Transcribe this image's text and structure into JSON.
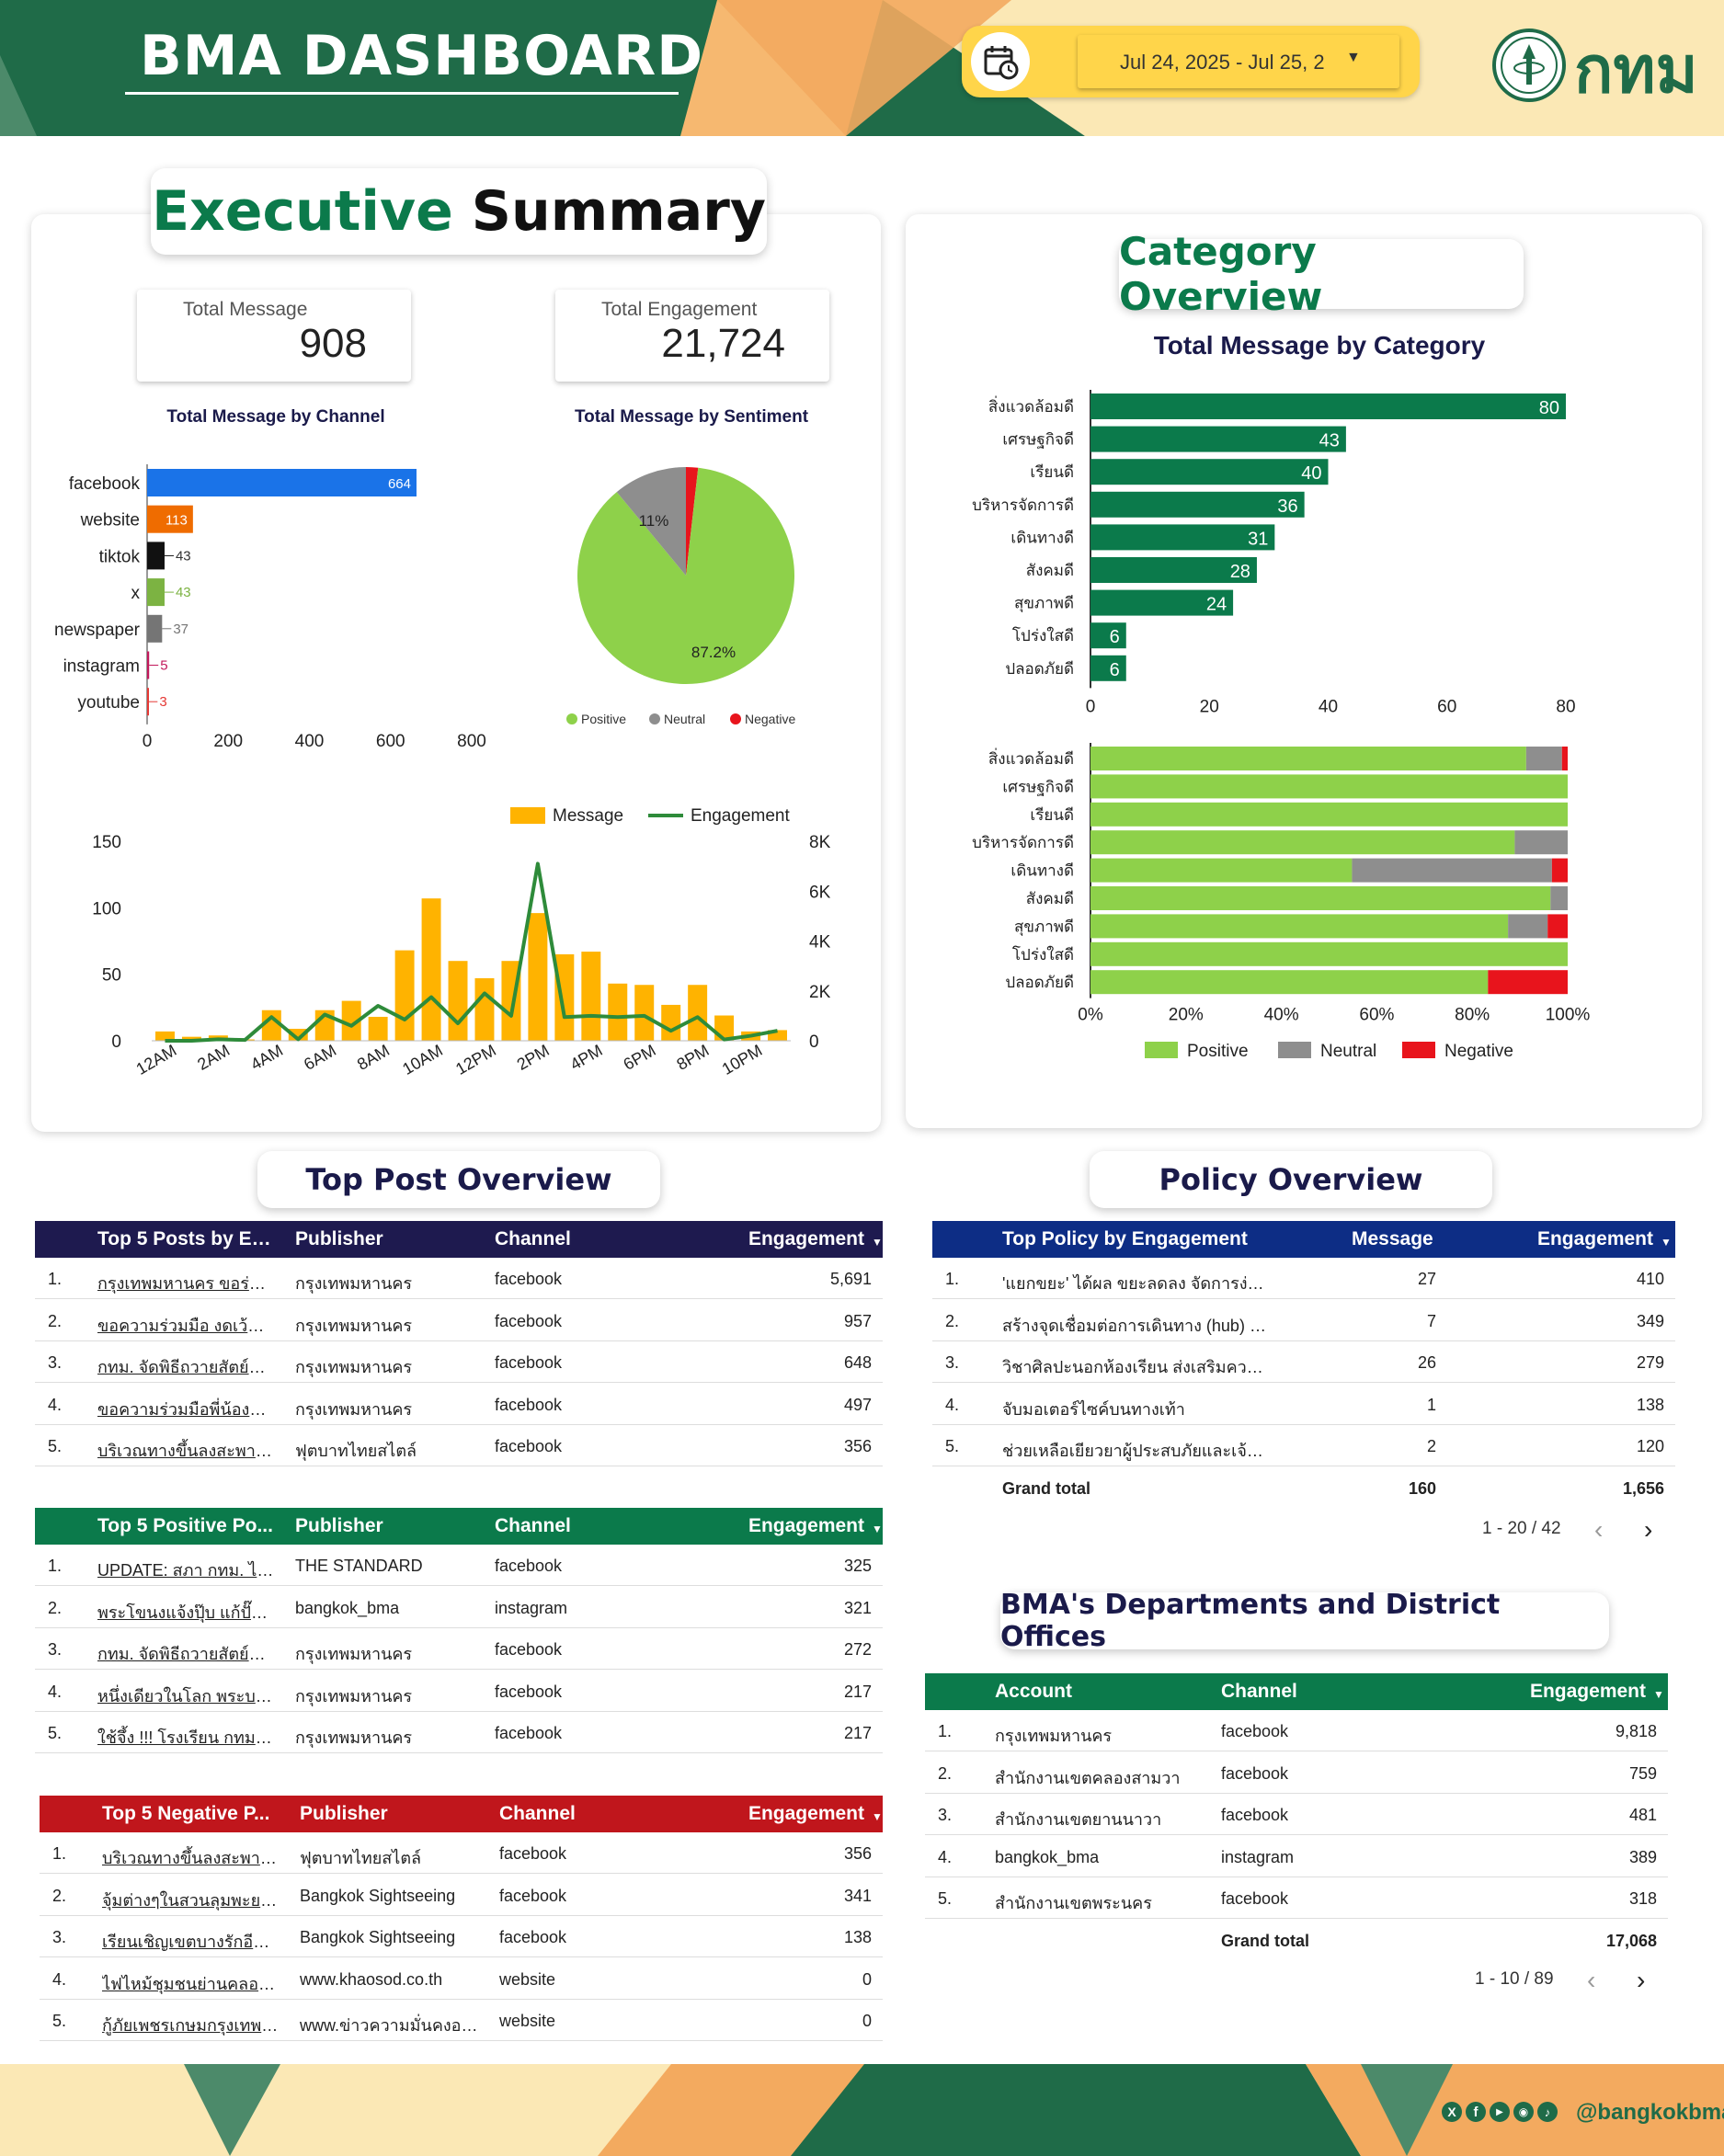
{
  "header": {
    "title": "BMA DASHBOARD",
    "date_range": "Jul 24, 2025 - Jul 25, 2",
    "logo_text": "กทม",
    "bg_dark": "#1f6b48",
    "bg_light": "#fbe3a8",
    "accent_yellow": "#ffd54a"
  },
  "exec": {
    "title_a": "Executive",
    "title_b": "Summary",
    "kpi_message_label": "Total Message",
    "kpi_message_value": "908",
    "kpi_engagement_label": "Total Engagement",
    "kpi_engagement_value": "21,724",
    "channel_title": "Total Message by Channel",
    "sentiment_title": "Total Message by Sentiment"
  },
  "category": {
    "title": "Category Overview",
    "chart_title": "Total Message by Category"
  },
  "top_post": {
    "title": "Top Post Overview"
  },
  "policy": {
    "title": "Policy Overview"
  },
  "dept": {
    "title": "BMA's Departments and District Offices"
  },
  "chart_data": [
    {
      "type": "bar",
      "orientation": "horizontal",
      "title": "Total Message by Channel",
      "categories": [
        "facebook",
        "website",
        "tiktok",
        "x",
        "newspaper",
        "instagram",
        "youtube"
      ],
      "values": [
        664,
        113,
        43,
        43,
        37,
        5,
        3
      ],
      "colors": [
        "#1a73e8",
        "#ef6c00",
        "#111111",
        "#7cb342",
        "#757575",
        "#c2185b",
        "#e53935"
      ],
      "xlim": [
        0,
        800
      ],
      "xticks": [
        0,
        200,
        400,
        600,
        800
      ]
    },
    {
      "type": "pie",
      "title": "Total Message by Sentiment",
      "labels": [
        "Positive",
        "Neutral",
        "Negative"
      ],
      "values": [
        87.2,
        11,
        1.8
      ],
      "slice_labels": [
        "87.2%",
        "11%",
        ""
      ],
      "colors": [
        "#8ed14a",
        "#8e8e8e",
        "#e8141c"
      ]
    },
    {
      "type": "bar",
      "orientation": "vertical",
      "series_type": "combo",
      "x": [
        "12AM",
        "1AM",
        "2AM",
        "3AM",
        "4AM",
        "5AM",
        "6AM",
        "7AM",
        "8AM",
        "9AM",
        "10AM",
        "11AM",
        "12PM",
        "1PM",
        "2PM",
        "3PM",
        "4PM",
        "5PM",
        "6PM",
        "7PM",
        "8PM",
        "9PM",
        "10PM",
        "11PM"
      ],
      "xtick_labels": [
        "12AM",
        "2AM",
        "4AM",
        "6AM",
        "8AM",
        "10AM",
        "12PM",
        "2PM",
        "4PM",
        "6PM",
        "8PM",
        "10PM"
      ],
      "series": [
        {
          "name": "Message",
          "kind": "bar",
          "axis": "left",
          "color": "#ffb300",
          "values": [
            7,
            3,
            4,
            1,
            23,
            9,
            23,
            30,
            18,
            68,
            107,
            60,
            47,
            60,
            96,
            65,
            67,
            43,
            42,
            27,
            42,
            19,
            7,
            8
          ]
        },
        {
          "name": "Engagement",
          "kind": "line",
          "axis": "right",
          "color": "#2e8b3a",
          "values": [
            0,
            0,
            60,
            30,
            950,
            60,
            1050,
            600,
            1400,
            850,
            1750,
            700,
            1900,
            1000,
            7100,
            950,
            1000,
            950,
            1000,
            400,
            950,
            50,
            200,
            400
          ]
        }
      ],
      "ylim_left": [
        0,
        150
      ],
      "yticks_left": [
        0,
        50,
        100,
        150
      ],
      "ylim_right": [
        0,
        8000
      ],
      "yticks_right": [
        "0",
        "2K",
        "4K",
        "6K",
        "8K"
      ]
    },
    {
      "type": "bar",
      "orientation": "horizontal",
      "title": "Total Message by Category",
      "categories": [
        "สิ่งแวดล้อมดี",
        "เศรษฐกิจดี",
        "เรียนดี",
        "บริหารจัดการดี",
        "เดินทางดี",
        "สังคมดี",
        "สุขภาพดี",
        "โปร่งใสดี",
        "ปลอดภัยดี"
      ],
      "values": [
        80,
        43,
        40,
        36,
        31,
        28,
        24,
        6,
        6
      ],
      "color": "#0b7a4b",
      "xlim": [
        0,
        80
      ],
      "xticks": [
        0,
        20,
        40,
        60,
        80
      ]
    },
    {
      "type": "bar",
      "orientation": "horizontal",
      "stacked": "percent",
      "categories": [
        "สิ่งแวดล้อมดี",
        "เศรษฐกิจดี",
        "เรียนดี",
        "บริหารจัดการดี",
        "เดินทางดี",
        "สังคมดี",
        "สุขภาพดี",
        "โปร่งใสดี",
        "ปลอดภัยดี"
      ],
      "series": [
        {
          "name": "Positive",
          "color": "#8ed14a",
          "values": [
            91.3,
            100,
            100,
            88.9,
            54.8,
            96.4,
            87.5,
            100,
            83.3
          ]
        },
        {
          "name": "Neutral",
          "color": "#8e8e8e",
          "values": [
            7.5,
            0,
            0,
            11.1,
            41.9,
            3.6,
            8.3,
            0,
            0
          ]
        },
        {
          "name": "Negative",
          "color": "#e8141c",
          "values": [
            1.2,
            0,
            0,
            0,
            3.3,
            0,
            4.2,
            0,
            16.7
          ]
        }
      ],
      "xticks": [
        "0%",
        "20%",
        "40%",
        "60%",
        "80%",
        "100%"
      ]
    }
  ],
  "top_engagement": {
    "headers": [
      "Top 5 Posts by En...",
      "Publisher",
      "Channel",
      "Engagement"
    ],
    "color": "#1e1a4f",
    "rows": [
      {
        "n": "1.",
        "post": "กรุงเทพมหานคร ขอร่วมส่ง...",
        "publisher": "กรุงเทพมหานคร",
        "channel": "facebook",
        "eng": "5,691"
      },
      {
        "n": "2.",
        "post": "ขอความร่วมมือ งดเว้นการ...",
        "publisher": "กรุงเทพมหานคร",
        "channel": "facebook",
        "eng": "957"
      },
      {
        "n": "3.",
        "post": "กทม. จัดพิธีถวายสัตย์ปฏิ...",
        "publisher": "กรุงเทพมหานคร",
        "channel": "facebook",
        "eng": "648"
      },
      {
        "n": "4.",
        "post": "ขอความร่วมมือพี่น้องประ...",
        "publisher": "กรุงเทพมหานคร",
        "channel": "facebook",
        "eng": "497"
      },
      {
        "n": "5.",
        "post": "บริเวณทางขึ้นลงสะพานลอ...",
        "publisher": "ฟุตบาทไทยสไตล์",
        "channel": "facebook",
        "eng": "356"
      }
    ]
  },
  "top_positive": {
    "headers": [
      "Top 5 Positive Po...",
      "Publisher",
      "Channel",
      "Engagement"
    ],
    "color": "#0b7a4b",
    "rows": [
      {
        "n": "1.",
        "post": "UPDATE: สภา กทม. ไฟเ...",
        "publisher": "THE STANDARD",
        "channel": "facebook",
        "eng": "325"
      },
      {
        "n": "2.",
        "post": "พระโขนงแจ้งปุ๊บ แก้ปั๊บ! ล...",
        "publisher": "bangkok_bma",
        "channel": "instagram",
        "eng": "321"
      },
      {
        "n": "3.",
        "post": "กทม. จัดพิธีถวายสัตย์ปฏิ...",
        "publisher": "กรุงเทพมหานคร",
        "channel": "facebook",
        "eng": "272"
      },
      {
        "n": "4.",
        "post": "หนึ่งเดียวในโลก พระบรมฯ...",
        "publisher": "กรุงเทพมหานคร",
        "channel": "facebook",
        "eng": "217"
      },
      {
        "n": "5.",
        "post": "ใช้จึ้ง !!! โรงเรียน กทม. เป...",
        "publisher": "กรุงเทพมหานคร",
        "channel": "facebook",
        "eng": "217"
      }
    ]
  },
  "top_negative": {
    "headers": [
      "Top 5 Negative P...",
      "Publisher",
      "Channel",
      "Engagement"
    ],
    "color": "#c0161c",
    "rows": [
      {
        "n": "1.",
        "post": "บริเวณทางขึ้นลงสะพานลอ...",
        "publisher": "ฟุตบาทไทยสไตล์",
        "channel": "facebook",
        "eng": "356"
      },
      {
        "n": "2.",
        "post": "จุ้มต่างๆในสวนลุมพะยะมา...",
        "publisher": "Bangkok Sightseeing",
        "channel": "facebook",
        "eng": "341"
      },
      {
        "n": "3.",
        "post": "เรียนเชิญเขตบางรักอีกครั้ง...",
        "publisher": "Bangkok Sightseeing",
        "channel": "facebook",
        "eng": "138"
      },
      {
        "n": "4.",
        "post": "ไฟไหม้ชุมชนย่านคลองเตย...",
        "publisher": "www.khaosod.co.th",
        "channel": "website",
        "eng": "0"
      },
      {
        "n": "5.",
        "post": "กู้ภัยเพชรเกษมกรุงเทพ ที่อ...",
        "publisher": "www.ข่าวความมั่นคงออน...",
        "channel": "website",
        "eng": "0"
      }
    ]
  },
  "policy_table": {
    "headers": [
      "Top Policy by Engagement",
      "Message",
      "Engagement"
    ],
    "color": "#0d2d85",
    "rows": [
      {
        "n": "1.",
        "policy": "'แยกขยะ' ได้ผล ขยะลดลง จัดการง่ายขึ้น",
        "msg": "27",
        "eng": "410"
      },
      {
        "n": "2.",
        "policy": "สร้างจุดเชื่อมต่อการเดินทาง (hub) เพื่อก...",
        "msg": "7",
        "eng": "349"
      },
      {
        "n": "3.",
        "policy": "วิชาศิลปะนอกห้องเรียน ส่งเสริมความคิด ...",
        "msg": "26",
        "eng": "279"
      },
      {
        "n": "4.",
        "policy": "จับมอเตอร์ไซค์บนทางเท้า",
        "msg": "1",
        "eng": "138"
      },
      {
        "n": "5.",
        "policy": "ช่วยเหลือเยียวยาผู้ประสบภัยและเจ้าหน้า...",
        "msg": "2",
        "eng": "120"
      }
    ],
    "total_label": "Grand total",
    "total_msg": "160",
    "total_eng": "1,656",
    "pager": "1 - 20 / 42"
  },
  "dept_table": {
    "headers": [
      "Account",
      "Channel",
      "Engagement"
    ],
    "color": "#0b7a4b",
    "rows": [
      {
        "n": "1.",
        "account": "กรุงเทพมหานคร",
        "channel": "facebook",
        "eng": "9,818"
      },
      {
        "n": "2.",
        "account": "สำนักงานเขตคลองสามวา",
        "channel": "facebook",
        "eng": "759"
      },
      {
        "n": "3.",
        "account": "สำนักงานเขตยานนาวา",
        "channel": "facebook",
        "eng": "481"
      },
      {
        "n": "4.",
        "account": "bangkok_bma",
        "channel": "instagram",
        "eng": "389"
      },
      {
        "n": "5.",
        "account": "สำนักงานเขตพระนคร",
        "channel": "facebook",
        "eng": "318"
      }
    ],
    "total_label": "Grand total",
    "total_eng": "17,068",
    "pager": "1 - 10 / 89"
  },
  "footer": {
    "handle": "@bangkokbma",
    "social_icons": [
      "x-icon",
      "facebook-icon",
      "youtube-icon",
      "instagram-icon",
      "tiktok-icon"
    ]
  }
}
